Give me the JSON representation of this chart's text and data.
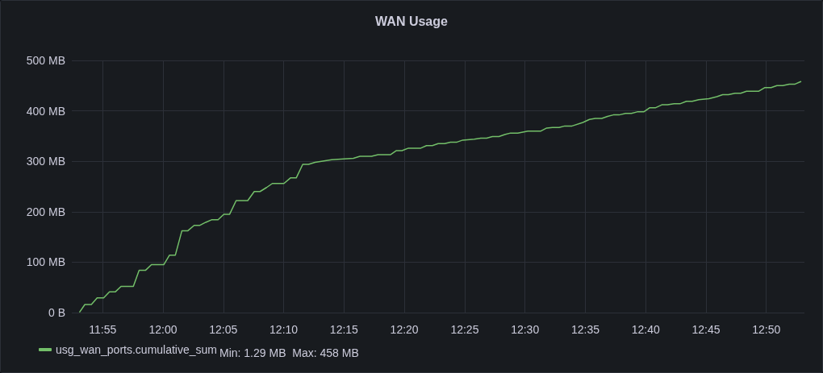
{
  "chart_data": {
    "type": "line",
    "title": "WAN Usage",
    "annotations": [
      "Min: 1.29 MB  Max: 458 MB"
    ],
    "legend": "bottom left",
    "grid": true,
    "marker": "none",
    "line_style": "solid",
    "xlim": [
      11.874,
      12.886
    ],
    "xticks": [
      {
        "value": 11.91667,
        "label": "11:55"
      },
      {
        "value": 12,
        "label": "12:00"
      },
      {
        "value": 12.08333,
        "label": "12:05"
      },
      {
        "value": 12.16667,
        "label": "12:10"
      },
      {
        "value": 12.25,
        "label": "12:15"
      },
      {
        "value": 12.33333,
        "label": "12:20"
      },
      {
        "value": 12.41667,
        "label": "12:25"
      },
      {
        "value": 12.5,
        "label": "12:30"
      },
      {
        "value": 12.58333,
        "label": "12:35"
      },
      {
        "value": 12.66667,
        "label": "12:40"
      },
      {
        "value": 12.75,
        "label": "12:45"
      },
      {
        "value": 12.83333,
        "label": "12:50"
      }
    ],
    "ylim": [
      0,
      500
    ],
    "yticks": [
      {
        "value": 0,
        "label": "0 B"
      },
      {
        "value": 100,
        "label": "100 MB"
      },
      {
        "value": 200,
        "label": "200 MB"
      },
      {
        "value": 300,
        "label": "300 MB"
      },
      {
        "value": 400,
        "label": "400 MB"
      },
      {
        "value": 500,
        "label": "500 MB"
      }
    ],
    "x": [
      11.885,
      11.892,
      11.901,
      11.909,
      11.918,
      11.926,
      11.934,
      11.942,
      11.959,
      11.967,
      11.976,
      11.984,
      12.001,
      12.009,
      12.017,
      12.026,
      12.034,
      12.043,
      12.051,
      12.059,
      12.067,
      12.076,
      12.084,
      12.092,
      12.101,
      12.117,
      12.126,
      12.134,
      12.143,
      12.151,
      12.167,
      12.176,
      12.184,
      12.193,
      12.201,
      12.21,
      12.233,
      12.263,
      12.272,
      12.288,
      12.297,
      12.314,
      12.322,
      12.33,
      12.339,
      12.356,
      12.364,
      12.372,
      12.38,
      12.389,
      12.397,
      12.406,
      12.414,
      12.43,
      12.439,
      12.447,
      12.455,
      12.464,
      12.472,
      12.48,
      12.49,
      12.504,
      12.522,
      12.53,
      12.538,
      12.547,
      12.555,
      12.565,
      12.58,
      12.589,
      12.597,
      12.606,
      12.614,
      12.622,
      12.63,
      12.639,
      12.647,
      12.655,
      12.664,
      12.672,
      12.68,
      12.689,
      12.697,
      12.706,
      12.714,
      12.723,
      12.731,
      12.74,
      12.754,
      12.765,
      12.773,
      12.781,
      12.79,
      12.798,
      12.806,
      12.823,
      12.831,
      12.84,
      12.848,
      12.856,
      12.865,
      12.873,
      12.881
    ],
    "series": [
      {
        "name": "usg_wan_ports.cumulative_sum",
        "color": "#73bf69",
        "values": [
          1.29,
          16,
          16,
          29,
          29,
          41,
          41,
          52,
          52,
          84,
          84,
          95,
          95,
          114,
          114,
          162,
          162,
          173,
          173,
          179,
          184,
          184,
          195,
          195,
          222,
          222,
          240,
          240,
          248,
          256,
          256,
          267,
          267,
          294,
          294,
          298,
          303,
          306,
          310,
          310,
          313,
          313,
          321,
          321,
          326,
          326,
          331,
          331,
          335,
          335,
          338,
          338,
          342,
          344,
          346,
          346,
          349,
          349,
          353,
          356,
          356,
          360,
          360,
          366,
          367,
          367,
          370,
          370,
          377,
          383,
          385,
          385,
          389,
          392,
          392,
          395,
          395,
          398,
          398,
          406,
          406,
          412,
          412,
          414,
          414,
          419,
          419,
          422,
          424,
          428,
          432,
          432,
          435,
          435,
          439,
          439,
          446,
          446,
          450,
          450,
          453,
          453,
          458
        ]
      }
    ]
  }
}
